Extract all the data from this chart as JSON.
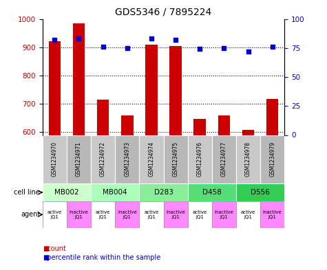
{
  "title": "GDS5346 / 7895224",
  "samples": [
    "GSM1234970",
    "GSM1234971",
    "GSM1234972",
    "GSM1234973",
    "GSM1234974",
    "GSM1234975",
    "GSM1234976",
    "GSM1234977",
    "GSM1234978",
    "GSM1234979"
  ],
  "counts": [
    920,
    985,
    715,
    660,
    910,
    905,
    648,
    658,
    608,
    718
  ],
  "percentile_ranks": [
    82,
    83,
    76,
    75,
    83,
    82,
    74,
    75,
    72,
    76
  ],
  "ylim_left": [
    590,
    1000
  ],
  "ylim_right": [
    0,
    100
  ],
  "yticks_left": [
    600,
    700,
    800,
    900,
    1000
  ],
  "yticks_right": [
    0,
    25,
    50,
    75,
    100
  ],
  "cell_lines": [
    {
      "name": "MB002",
      "cols": [
        0,
        1
      ],
      "color": "#ccffcc"
    },
    {
      "name": "MB004",
      "cols": [
        2,
        3
      ],
      "color": "#aaffbb"
    },
    {
      "name": "D283",
      "cols": [
        4,
        5
      ],
      "color": "#88ee99"
    },
    {
      "name": "D458",
      "cols": [
        6,
        7
      ],
      "color": "#55dd77"
    },
    {
      "name": "D556",
      "cols": [
        8,
        9
      ],
      "color": "#33cc55"
    }
  ],
  "sample_shades": [
    "#c8c8c8",
    "#b8b8b8",
    "#c8c8c8",
    "#b8b8b8",
    "#c8c8c8",
    "#b8b8b8",
    "#c8c8c8",
    "#b8b8b8",
    "#c8c8c8",
    "#b8b8b8"
  ],
  "agent_colors": [
    "#ffffff",
    "#ff88ff",
    "#ffffff",
    "#ff88ff",
    "#ffffff",
    "#ff88ff",
    "#ffffff",
    "#ff88ff",
    "#ffffff",
    "#ff88ff"
  ],
  "agent_labels": [
    "active\nJQ1",
    "inactive\nJQ1",
    "active\nJQ1",
    "inactive\nJQ1",
    "active\nJQ1",
    "inactive\nJQ1",
    "active\nJQ1",
    "inactive\nJQ1",
    "active\nJQ1",
    "inactive\nJQ1"
  ],
  "bar_color": "#cc0000",
  "dot_color": "#0000cc",
  "left_axis_color": "#cc0000",
  "right_axis_color": "#0000cc"
}
